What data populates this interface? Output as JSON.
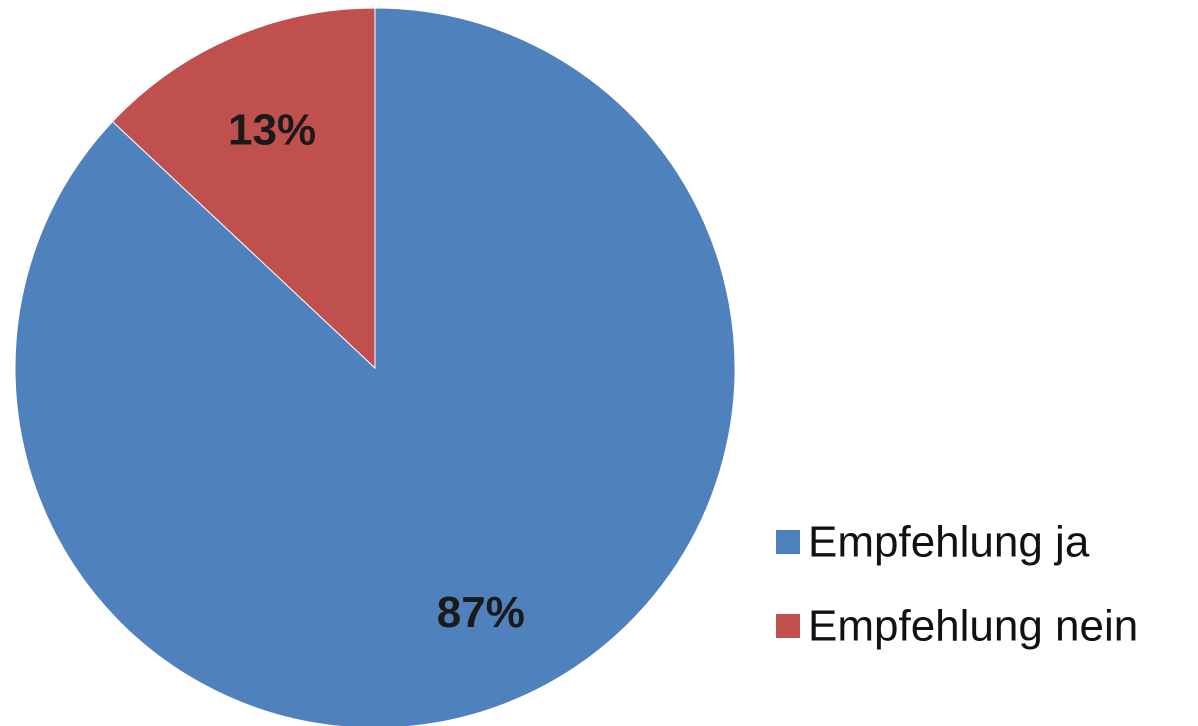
{
  "chart_data": {
    "type": "pie",
    "categories": [
      "Empfehlung ja",
      "Empfehlung nein"
    ],
    "values": [
      87,
      13
    ],
    "value_labels": [
      "87%",
      "13%"
    ],
    "colors": [
      "#4f81bd",
      "#c0504d"
    ],
    "start": "12 o'clock",
    "direction": "clockwise",
    "legend_position": "right"
  }
}
